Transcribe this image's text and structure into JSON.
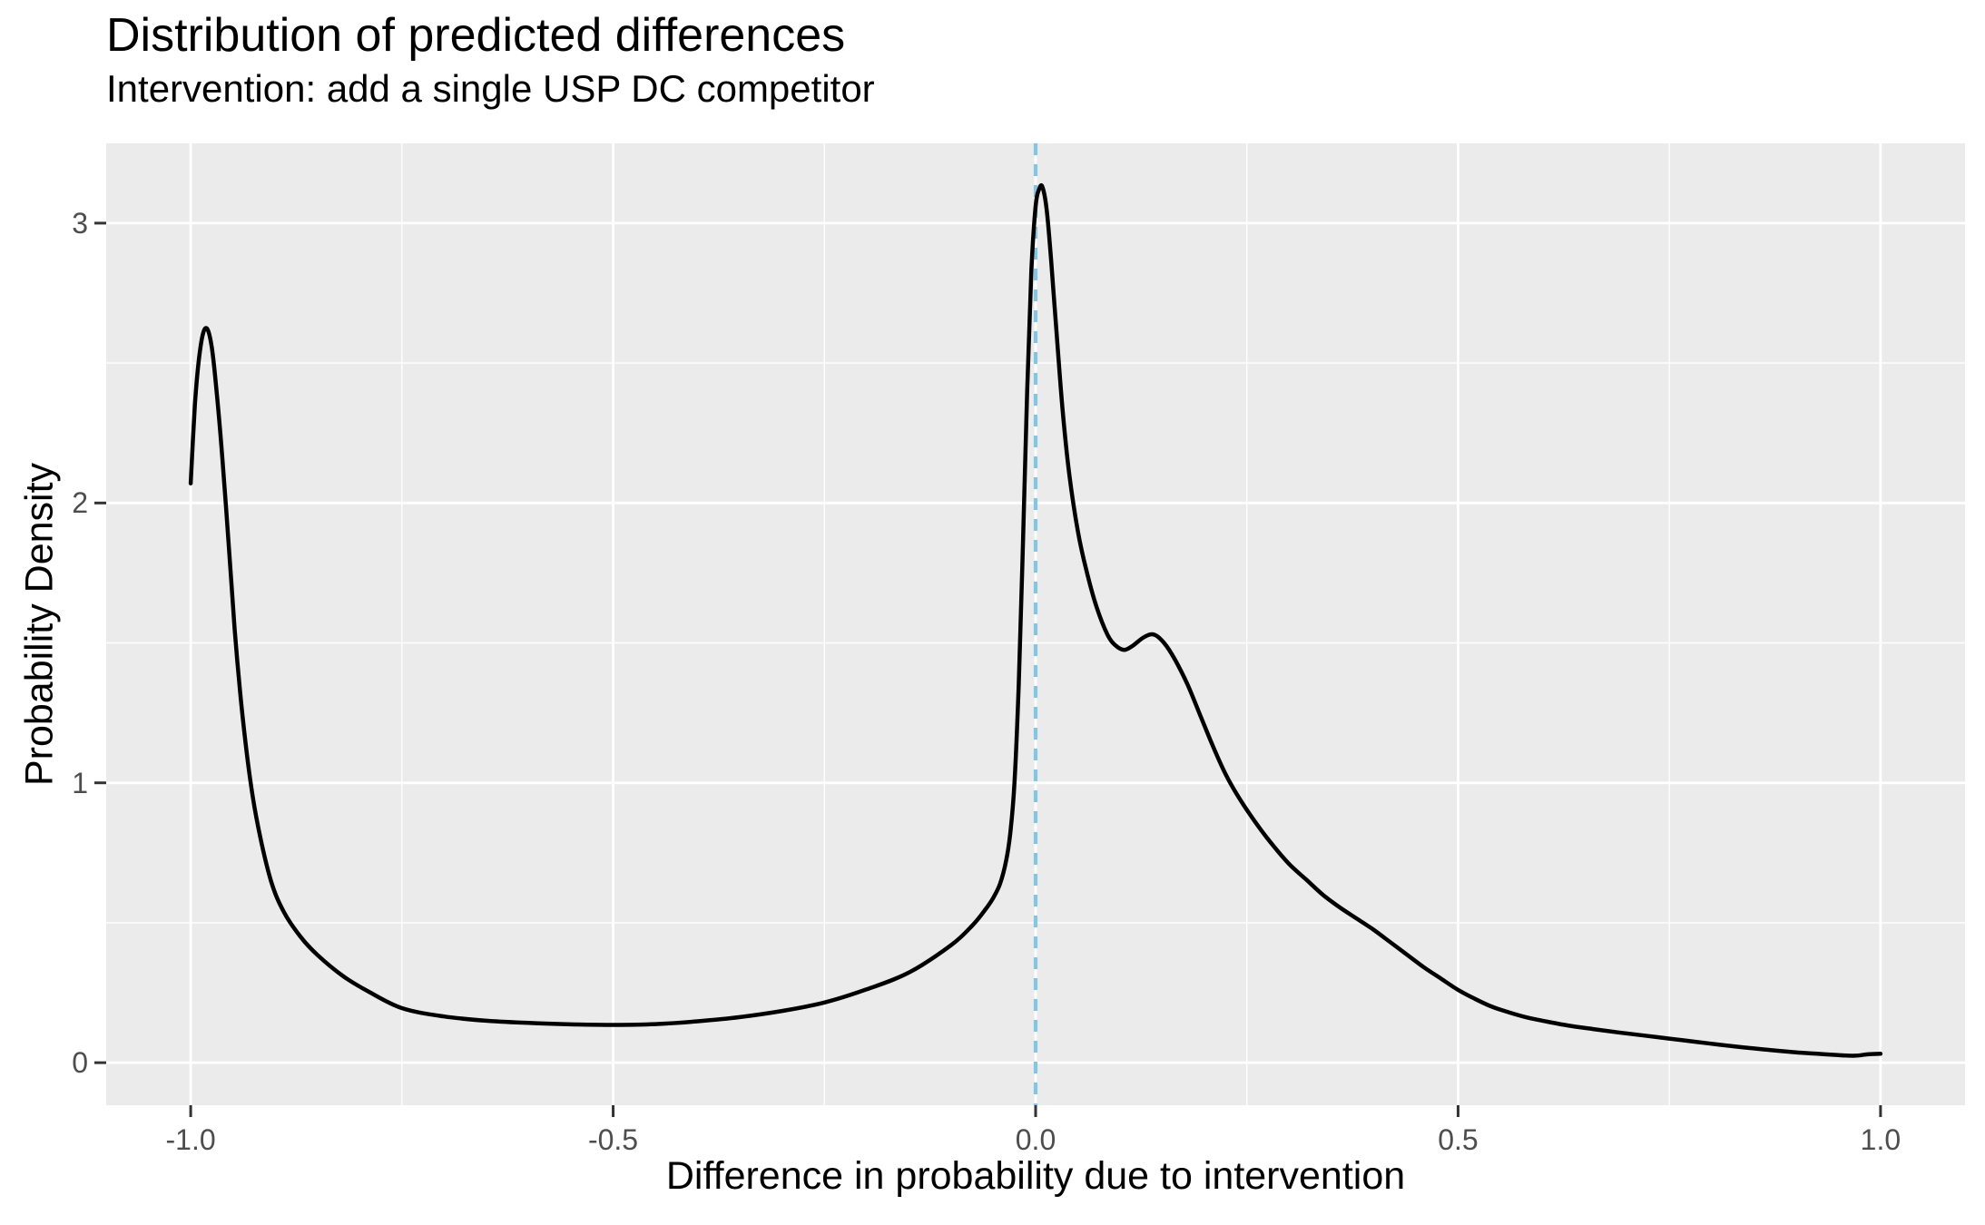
{
  "chart_data": {
    "type": "line",
    "subtype": "density",
    "title": "Distribution of predicted differences",
    "subtitle": "Intervention: add a single USP DC competitor",
    "xlabel": "Difference in probability due to intervention",
    "ylabel": "Probability Density",
    "xlim": [
      -1.1,
      1.1
    ],
    "ylim": [
      -0.152,
      3.285
    ],
    "grid": true,
    "legend": "none",
    "x_ticks": {
      "values": [
        -1.0,
        -0.5,
        0.0,
        0.5,
        1.0
      ],
      "labels": [
        "-1.0",
        "-0.5",
        "0.0",
        "0.5",
        "1.0"
      ]
    },
    "y_ticks": {
      "values": [
        0,
        1,
        2,
        3
      ],
      "labels": [
        "0",
        "1",
        "2",
        "3"
      ]
    },
    "x_minor_gridlines": [
      -0.75,
      -0.25,
      0.25,
      0.75
    ],
    "y_minor_gridlines": [
      0.5,
      1.5,
      2.5
    ],
    "reference_line": {
      "x": 0.0,
      "style": "dashed",
      "color": "#82C6E2"
    },
    "theme": {
      "panel_background": "#EBEBEB",
      "gridline_color": "#FFFFFF",
      "axis_text_color": "#4D4D4D",
      "tick_mark_color": "#333333",
      "curve_color": "#000000"
    },
    "series": [
      {
        "name": "predicted-difference-density",
        "color": "#000000",
        "points": [
          [
            -1.0,
            2.07
          ],
          [
            -0.995,
            2.35
          ],
          [
            -0.99,
            2.52
          ],
          [
            -0.985,
            2.61
          ],
          [
            -0.98,
            2.62
          ],
          [
            -0.975,
            2.555
          ],
          [
            -0.97,
            2.42
          ],
          [
            -0.963,
            2.18
          ],
          [
            -0.955,
            1.85
          ],
          [
            -0.948,
            1.55
          ],
          [
            -0.94,
            1.28
          ],
          [
            -0.93,
            1.02
          ],
          [
            -0.92,
            0.84
          ],
          [
            -0.905,
            0.65
          ],
          [
            -0.89,
            0.54
          ],
          [
            -0.87,
            0.45
          ],
          [
            -0.85,
            0.385
          ],
          [
            -0.82,
            0.31
          ],
          [
            -0.79,
            0.255
          ],
          [
            -0.75,
            0.195
          ],
          [
            -0.7,
            0.165
          ],
          [
            -0.65,
            0.15
          ],
          [
            -0.6,
            0.142
          ],
          [
            -0.55,
            0.137
          ],
          [
            -0.5,
            0.135
          ],
          [
            -0.45,
            0.138
          ],
          [
            -0.4,
            0.148
          ],
          [
            -0.35,
            0.163
          ],
          [
            -0.3,
            0.185
          ],
          [
            -0.25,
            0.215
          ],
          [
            -0.2,
            0.262
          ],
          [
            -0.15,
            0.322
          ],
          [
            -0.1,
            0.42
          ],
          [
            -0.075,
            0.49
          ],
          [
            -0.06,
            0.545
          ],
          [
            -0.05,
            0.59
          ],
          [
            -0.042,
            0.64
          ],
          [
            -0.035,
            0.72
          ],
          [
            -0.03,
            0.82
          ],
          [
            -0.025,
            1.0
          ],
          [
            -0.02,
            1.35
          ],
          [
            -0.015,
            1.85
          ],
          [
            -0.01,
            2.4
          ],
          [
            -0.005,
            2.83
          ],
          [
            0.0,
            3.06
          ],
          [
            0.004,
            3.12
          ],
          [
            0.008,
            3.13
          ],
          [
            0.013,
            3.05
          ],
          [
            0.018,
            2.88
          ],
          [
            0.025,
            2.6
          ],
          [
            0.032,
            2.33
          ],
          [
            0.04,
            2.1
          ],
          [
            0.05,
            1.9
          ],
          [
            0.06,
            1.76
          ],
          [
            0.072,
            1.63
          ],
          [
            0.085,
            1.53
          ],
          [
            0.095,
            1.49
          ],
          [
            0.105,
            1.475
          ],
          [
            0.115,
            1.49
          ],
          [
            0.128,
            1.52
          ],
          [
            0.14,
            1.53
          ],
          [
            0.152,
            1.5
          ],
          [
            0.165,
            1.44
          ],
          [
            0.18,
            1.35
          ],
          [
            0.195,
            1.24
          ],
          [
            0.21,
            1.13
          ],
          [
            0.225,
            1.03
          ],
          [
            0.24,
            0.95
          ],
          [
            0.26,
            0.86
          ],
          [
            0.28,
            0.78
          ],
          [
            0.3,
            0.71
          ],
          [
            0.32,
            0.655
          ],
          [
            0.34,
            0.6
          ],
          [
            0.36,
            0.555
          ],
          [
            0.38,
            0.515
          ],
          [
            0.4,
            0.475
          ],
          [
            0.42,
            0.43
          ],
          [
            0.44,
            0.385
          ],
          [
            0.46,
            0.34
          ],
          [
            0.48,
            0.3
          ],
          [
            0.5,
            0.26
          ],
          [
            0.52,
            0.228
          ],
          [
            0.54,
            0.2
          ],
          [
            0.56,
            0.18
          ],
          [
            0.58,
            0.163
          ],
          [
            0.6,
            0.15
          ],
          [
            0.63,
            0.133
          ],
          [
            0.66,
            0.12
          ],
          [
            0.69,
            0.108
          ],
          [
            0.72,
            0.097
          ],
          [
            0.75,
            0.086
          ],
          [
            0.78,
            0.075
          ],
          [
            0.81,
            0.064
          ],
          [
            0.84,
            0.054
          ],
          [
            0.87,
            0.045
          ],
          [
            0.9,
            0.037
          ],
          [
            0.925,
            0.032
          ],
          [
            0.95,
            0.027
          ],
          [
            0.97,
            0.025
          ],
          [
            0.985,
            0.03
          ],
          [
            1.0,
            0.032
          ]
        ]
      }
    ]
  }
}
